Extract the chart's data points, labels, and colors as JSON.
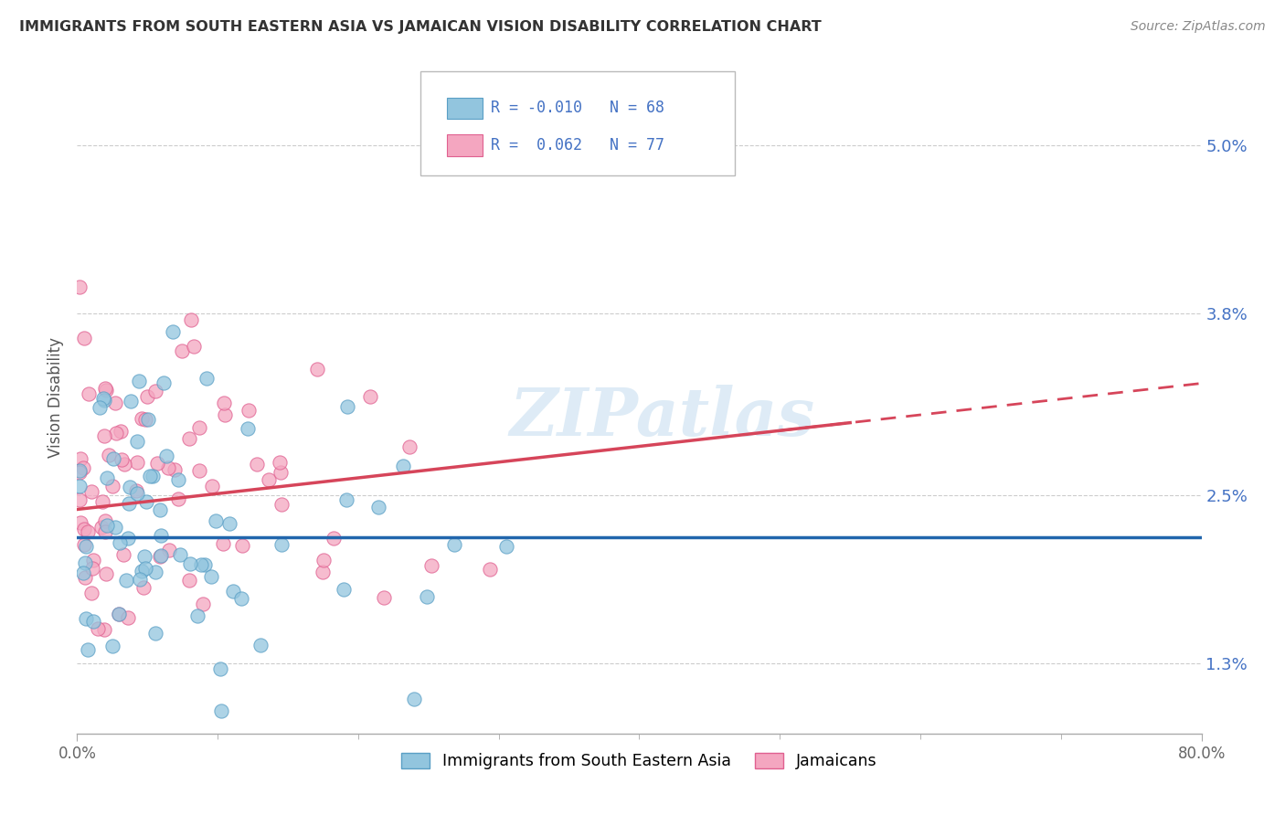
{
  "title": "IMMIGRANTS FROM SOUTH EASTERN ASIA VS JAMAICAN VISION DISABILITY CORRELATION CHART",
  "source": "Source: ZipAtlas.com",
  "ylabel": "Vision Disability",
  "legend_labels": [
    "Immigrants from South Eastern Asia",
    "Jamaicans"
  ],
  "legend_R_blue": "-0.010",
  "legend_N_blue": "68",
  "legend_R_pink": "0.062",
  "legend_N_pink": "77",
  "blue_color": "#92c5de",
  "pink_color": "#f4a6c0",
  "blue_edge_color": "#5a9fc5",
  "pink_edge_color": "#e06090",
  "trendline_blue_color": "#2166ac",
  "trendline_pink_color": "#d6455a",
  "watermark": "ZIPatlas",
  "xlim": [
    0.0,
    0.8
  ],
  "ylim": [
    0.008,
    0.056
  ],
  "ytick_vals": [
    0.013,
    0.025,
    0.038,
    0.05
  ],
  "ytick_labels": [
    "1.3%",
    "2.5%",
    "3.8%",
    "5.0%"
  ],
  "blue_trendline_y_start": 0.022,
  "blue_trendline_y_end": 0.022,
  "pink_trendline_x_start": 0.0,
  "pink_trendline_x_end": 0.8,
  "pink_trendline_y_start": 0.024,
  "pink_trendline_y_end": 0.033
}
